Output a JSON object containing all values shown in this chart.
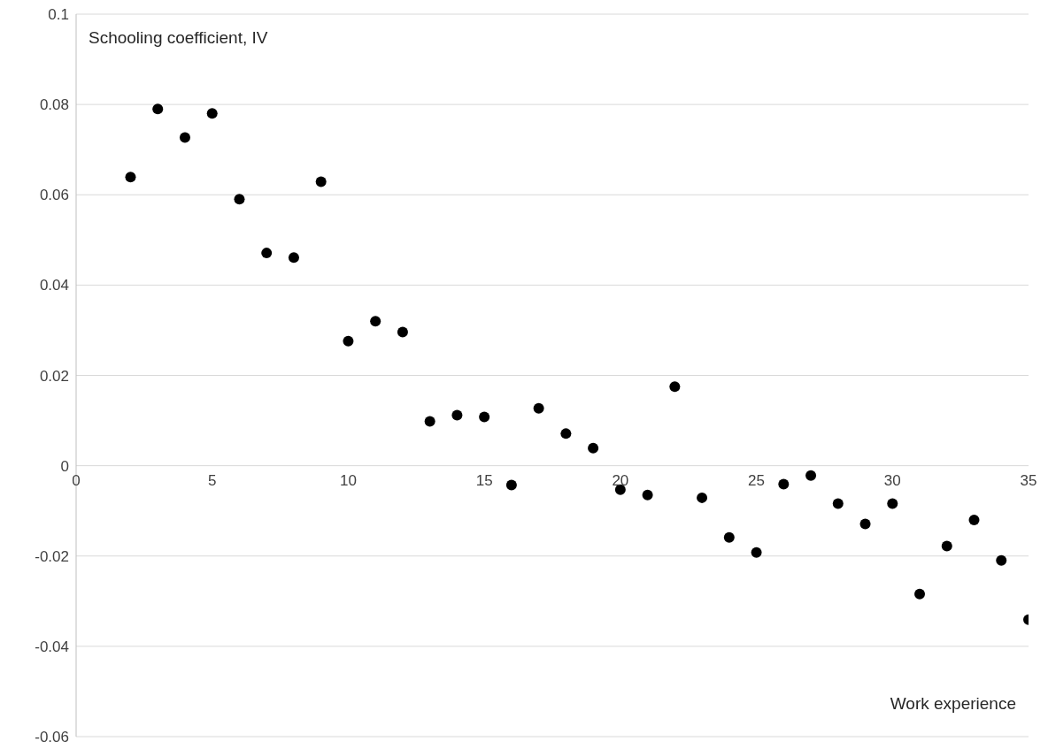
{
  "chart_data": {
    "type": "scatter",
    "xlabel": "Work experience",
    "ylabel": "Schooling coefficient, IV",
    "x": [
      2,
      3,
      4,
      5,
      6,
      7,
      8,
      9,
      10,
      11,
      12,
      13,
      14,
      15,
      16,
      17,
      18,
      19,
      20,
      21,
      22,
      23,
      24,
      25,
      26,
      27,
      28,
      29,
      30,
      31,
      32,
      33,
      34,
      35
    ],
    "values": [
      0.0639,
      0.079,
      0.0727,
      0.078,
      0.059,
      0.0471,
      0.0461,
      0.0629,
      0.0276,
      0.032,
      0.0296,
      0.0098,
      0.0112,
      0.0108,
      -0.0043,
      0.0127,
      0.0071,
      0.0039,
      -0.0053,
      -0.0065,
      0.0175,
      -0.0071,
      -0.0159,
      -0.0192,
      -0.0041,
      -0.0022,
      -0.0084,
      -0.0129,
      -0.0084,
      -0.0284,
      -0.0178,
      -0.012,
      -0.021,
      -0.0341
    ],
    "color": "#000000",
    "marker": "circle",
    "xlim": [
      0,
      35
    ],
    "xticks": [
      0,
      5,
      10,
      15,
      20,
      25,
      30,
      35
    ],
    "ylim": [
      -0.06,
      0.1
    ],
    "yticks": [
      -0.06,
      -0.04,
      -0.02,
      0,
      0.02,
      0.04,
      0.06,
      0.08,
      0.1
    ],
    "grid": "y"
  }
}
